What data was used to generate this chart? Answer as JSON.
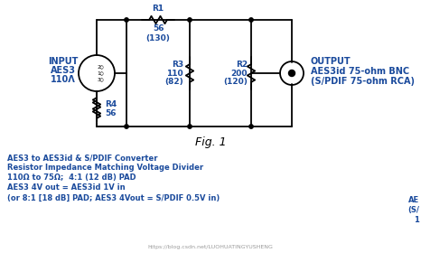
{
  "title": "Fig. 1",
  "description_lines": [
    "AES3 to AES3id & S/PDIF Converter",
    "Resistor Impedance Matching Voltage Divider",
    "110Ω to 75Ω;  4:1 (12 dB) PAD",
    "AES3 4V out = AES3id 1V in",
    "(or 8:1 [18 dB] PAD; AES3 4Vout = S/PDIF 0.5V in)"
  ],
  "input_label": [
    "INPUT",
    "AES3",
    "110Λ"
  ],
  "output_label": [
    "OUTPUT",
    "AES3id 75-ohm BNC",
    "(S/PDIF 75-ohm RCA)"
  ],
  "r1_label": [
    "R1",
    "56",
    "(130)"
  ],
  "r2_label": [
    "R2",
    "200",
    "(120)"
  ],
  "r3_label": [
    "R3",
    "110",
    "(82)"
  ],
  "r4_label": [
    "R4",
    "56"
  ],
  "watermark": "https://blog.csdn.net/LUOHUATINGYUSHENG",
  "text_color": "#1a4a9c",
  "line_color": "#000000",
  "bg_color": "#ffffff",
  "partial_right": [
    "AE",
    "(S/",
    "1"
  ]
}
